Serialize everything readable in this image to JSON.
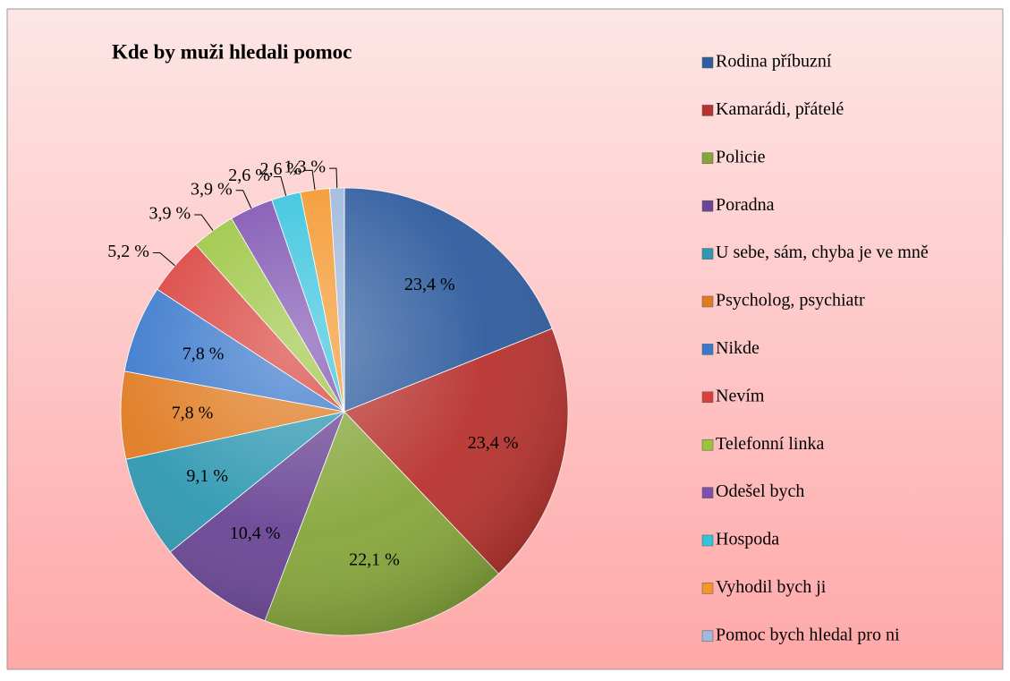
{
  "chart_data": {
    "type": "pie",
    "title": "Kde by muži hledali pomoc",
    "categories": [
      "Rodina příbuzní",
      "Kamarádi, přátelé",
      "Policie",
      "Poradna",
      "U sebe, sám, chyba je ve mně",
      "Psycholog, psychiatr",
      "Nikde",
      "Nevím",
      "Telefonní linka",
      "Odešel bych",
      "Hospoda",
      "Vyhodil bych ji",
      "Pomoc bych hledal pro ni"
    ],
    "values": [
      23.4,
      23.4,
      22.1,
      10.4,
      9.1,
      7.8,
      7.8,
      5.2,
      3.9,
      3.9,
      2.6,
      2.6,
      1.3
    ],
    "value_labels": [
      "23,4 %",
      "23,4 %",
      "22,1 %",
      "10,4 %",
      "9,1 %",
      "7,8 %",
      "7,8 %",
      "5,2 %",
      "3,9 %",
      "3,9 %",
      "2,6 %",
      "2,6 %",
      "1,3 %"
    ],
    "colors": [
      "#2e5c9e",
      "#b8322e",
      "#86a63a",
      "#6a4595",
      "#2f98b2",
      "#e07b22",
      "#3a78cc",
      "#d9403b",
      "#9ac43e",
      "#7d50b0",
      "#34c3dd",
      "#f4962b",
      "#9fb8dc"
    ],
    "legend": "right"
  }
}
